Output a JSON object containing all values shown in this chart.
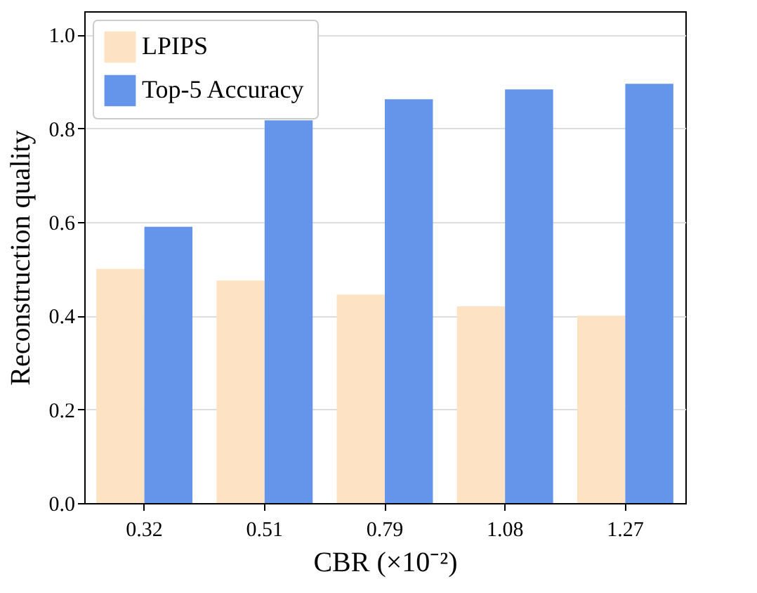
{
  "chart_data": {
    "type": "bar",
    "xlabel": "CBR (×10⁻²)",
    "ylabel": "Reconstruction quality",
    "categories": [
      "0.32",
      "0.51",
      "0.79",
      "1.08",
      "1.27"
    ],
    "series": [
      {
        "name": "LPIPS",
        "color": "#fde3c4",
        "values": [
          0.5,
          0.475,
          0.445,
          0.42,
          0.4
        ]
      },
      {
        "name": "Top-5 Accuracy",
        "color": "#6495ea",
        "values": [
          0.59,
          0.817,
          0.862,
          0.883,
          0.895
        ]
      }
    ],
    "ylim": [
      0,
      1.05
    ],
    "yticks": [
      {
        "value": 0,
        "label": "0.0"
      },
      0.2,
      0.4,
      0.6,
      0.8,
      {
        "value": 1,
        "label": "1.0"
      }
    ],
    "grid": "y",
    "legend": "top left"
  }
}
